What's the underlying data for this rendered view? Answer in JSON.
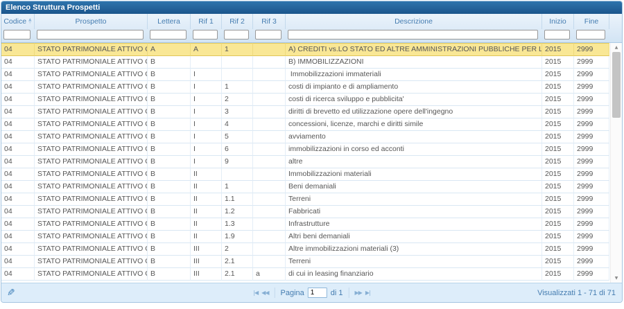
{
  "window": {
    "title": "Elenco Struttura Prospetti"
  },
  "table": {
    "columns": [
      {
        "key": "codice",
        "label": "Codice",
        "sortable": true,
        "filter_value": ""
      },
      {
        "key": "prospetto",
        "label": "Prospetto",
        "sortable": false,
        "filter_value": ""
      },
      {
        "key": "lettera",
        "label": "Lettera",
        "sortable": false,
        "filter_value": ""
      },
      {
        "key": "rif1",
        "label": "Rif 1",
        "sortable": false,
        "filter_value": ""
      },
      {
        "key": "rif2",
        "label": "Rif 2",
        "sortable": false,
        "filter_value": ""
      },
      {
        "key": "rif3",
        "label": "Rif 3",
        "sortable": false,
        "filter_value": ""
      },
      {
        "key": "descrizione",
        "label": "Descrizione",
        "sortable": false,
        "filter_value": ""
      },
      {
        "key": "inizio",
        "label": "Inizio",
        "sortable": false,
        "filter_value": ""
      },
      {
        "key": "fine",
        "label": "Fine",
        "sortable": false,
        "filter_value": ""
      }
    ],
    "rows": [
      {
        "selected": true,
        "codice": "04",
        "prospetto": "STATO PATRIMONIALE ATTIVO CONSOL",
        "lettera": "A",
        "rif1": "A",
        "rif2": "1",
        "rif3": "",
        "descrizione": "A) CREDITI vs.LO STATO ED ALTRE AMMINISTRAZIONI PUBBLICHE PER LA PARTECIPAZION",
        "inizio": "2015",
        "fine": "2999"
      },
      {
        "selected": false,
        "codice": "04",
        "prospetto": "STATO PATRIMONIALE ATTIVO CONSOL",
        "lettera": "B",
        "rif1": "",
        "rif2": "",
        "rif3": "",
        "descrizione": "B) IMMOBILIZZAZIONI",
        "inizio": "2015",
        "fine": "2999"
      },
      {
        "selected": false,
        "codice": "04",
        "prospetto": "STATO PATRIMONIALE ATTIVO CONSOL",
        "lettera": "B",
        "rif1": "I",
        "rif2": "",
        "rif3": "",
        "descrizione": " Immobilizzazioni immateriali",
        "inizio": "2015",
        "fine": "2999"
      },
      {
        "selected": false,
        "codice": "04",
        "prospetto": "STATO PATRIMONIALE ATTIVO CONSOL",
        "lettera": "B",
        "rif1": "I",
        "rif2": "1",
        "rif3": "",
        "descrizione": "costi di impianto e di ampliamento",
        "inizio": "2015",
        "fine": "2999"
      },
      {
        "selected": false,
        "codice": "04",
        "prospetto": "STATO PATRIMONIALE ATTIVO CONSOL",
        "lettera": "B",
        "rif1": "I",
        "rif2": "2",
        "rif3": "",
        "descrizione": "costi di ricerca sviluppo e pubblicita'",
        "inizio": "2015",
        "fine": "2999"
      },
      {
        "selected": false,
        "codice": "04",
        "prospetto": "STATO PATRIMONIALE ATTIVO CONSOL",
        "lettera": "B",
        "rif1": "I",
        "rif2": "3",
        "rif3": "",
        "descrizione": "diritti di brevetto ed utilizzazione opere dell'ingegno",
        "inizio": "2015",
        "fine": "2999"
      },
      {
        "selected": false,
        "codice": "04",
        "prospetto": "STATO PATRIMONIALE ATTIVO CONSOL",
        "lettera": "B",
        "rif1": "I",
        "rif2": "4",
        "rif3": "",
        "descrizione": "concessioni, licenze, marchi e diritti simile",
        "inizio": "2015",
        "fine": "2999"
      },
      {
        "selected": false,
        "codice": "04",
        "prospetto": "STATO PATRIMONIALE ATTIVO CONSOL",
        "lettera": "B",
        "rif1": "I",
        "rif2": "5",
        "rif3": "",
        "descrizione": "avviamento",
        "inizio": "2015",
        "fine": "2999"
      },
      {
        "selected": false,
        "codice": "04",
        "prospetto": "STATO PATRIMONIALE ATTIVO CONSOL",
        "lettera": "B",
        "rif1": "I",
        "rif2": "6",
        "rif3": "",
        "descrizione": "immobilizzazioni in corso ed acconti",
        "inizio": "2015",
        "fine": "2999"
      },
      {
        "selected": false,
        "codice": "04",
        "prospetto": "STATO PATRIMONIALE ATTIVO CONSOL",
        "lettera": "B",
        "rif1": "I",
        "rif2": "9",
        "rif3": "",
        "descrizione": "altre",
        "inizio": "2015",
        "fine": "2999"
      },
      {
        "selected": false,
        "codice": "04",
        "prospetto": "STATO PATRIMONIALE ATTIVO CONSOL",
        "lettera": "B",
        "rif1": "II",
        "rif2": "",
        "rif3": "",
        "descrizione": "Immobilizzazioni materiali",
        "inizio": "2015",
        "fine": "2999"
      },
      {
        "selected": false,
        "codice": "04",
        "prospetto": "STATO PATRIMONIALE ATTIVO CONSOL",
        "lettera": "B",
        "rif1": "II",
        "rif2": "1",
        "rif3": "",
        "descrizione": "Beni demaniali",
        "inizio": "2015",
        "fine": "2999"
      },
      {
        "selected": false,
        "codice": "04",
        "prospetto": "STATO PATRIMONIALE ATTIVO CONSOL",
        "lettera": "B",
        "rif1": "II",
        "rif2": "1.1",
        "rif3": "",
        "descrizione": "Terreni",
        "inizio": "2015",
        "fine": "2999"
      },
      {
        "selected": false,
        "codice": "04",
        "prospetto": "STATO PATRIMONIALE ATTIVO CONSOL",
        "lettera": "B",
        "rif1": "II",
        "rif2": "1.2",
        "rif3": "",
        "descrizione": "Fabbricati",
        "inizio": "2015",
        "fine": "2999"
      },
      {
        "selected": false,
        "codice": "04",
        "prospetto": "STATO PATRIMONIALE ATTIVO CONSOL",
        "lettera": "B",
        "rif1": "II",
        "rif2": "1.3",
        "rif3": "",
        "descrizione": "Infrastrutture",
        "inizio": "2015",
        "fine": "2999"
      },
      {
        "selected": false,
        "codice": "04",
        "prospetto": "STATO PATRIMONIALE ATTIVO CONSOL",
        "lettera": "B",
        "rif1": "II",
        "rif2": "1.9",
        "rif3": "",
        "descrizione": "Altri beni demaniali",
        "inizio": "2015",
        "fine": "2999"
      },
      {
        "selected": false,
        "codice": "04",
        "prospetto": "STATO PATRIMONIALE ATTIVO CONSOL",
        "lettera": "B",
        "rif1": "III",
        "rif2": "2",
        "rif3": "",
        "descrizione": "Altre immobilizzazioni materiali (3)",
        "inizio": "2015",
        "fine": "2999"
      },
      {
        "selected": false,
        "codice": "04",
        "prospetto": "STATO PATRIMONIALE ATTIVO CONSOL",
        "lettera": "B",
        "rif1": "III",
        "rif2": "2.1",
        "rif3": "",
        "descrizione": "Terreni",
        "inizio": "2015",
        "fine": "2999"
      },
      {
        "selected": false,
        "codice": "04",
        "prospetto": "STATO PATRIMONIALE ATTIVO CONSOL",
        "lettera": "B",
        "rif1": "III",
        "rif2": "2.1",
        "rif3": "a",
        "descrizione": "di cui in leasing finanziario",
        "inizio": "2015",
        "fine": "2999"
      }
    ]
  },
  "pager": {
    "edit_glyph": "✎",
    "first_glyph": "|◀",
    "prev_glyph": "◀◀",
    "next_glyph": "▶▶",
    "last_glyph": "▶|",
    "page_label": "Pagina",
    "page_value": "1",
    "total_pages_label": "di 1",
    "status": "Visualizzati 1 - 71 di 71"
  },
  "scrollbar": {
    "up_glyph": "▲",
    "down_glyph": "▼"
  },
  "sort_icons": {
    "asc": "▲",
    "desc": "▼"
  },
  "colors": {
    "title_bar": "#1b558c",
    "header_text": "#447cb0",
    "selected_row_bg": "#f9e795",
    "accent": "#3d7fb8"
  }
}
